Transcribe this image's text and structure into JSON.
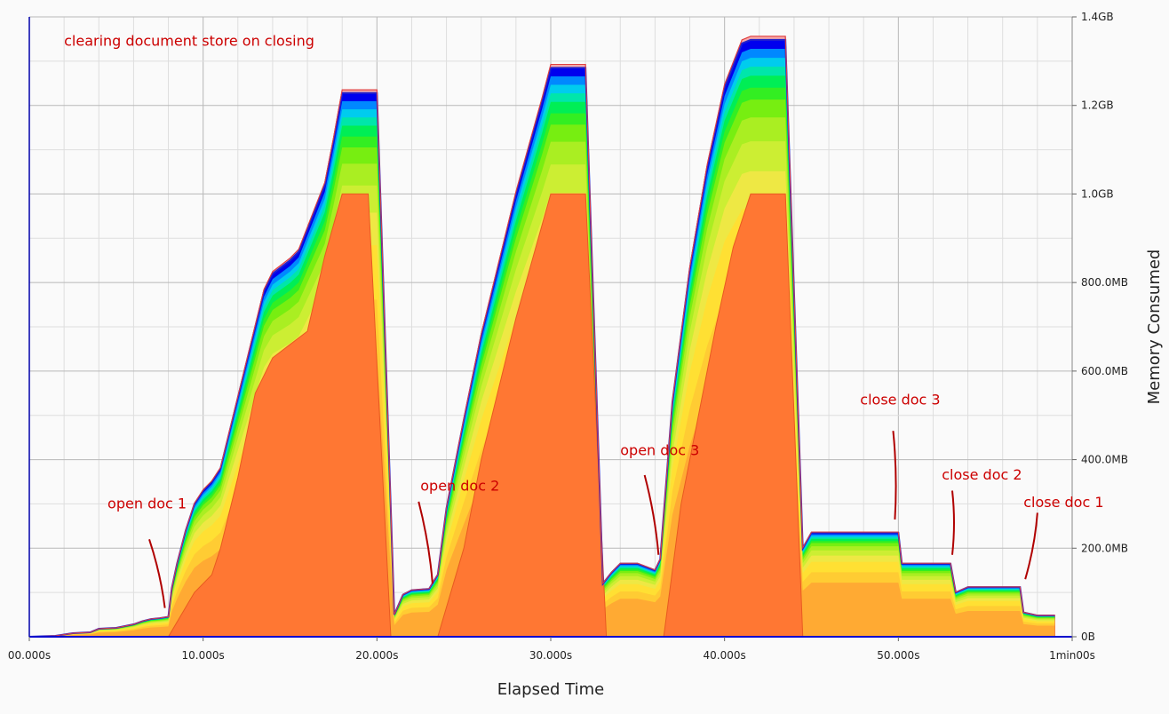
{
  "chart_data": {
    "type": "area",
    "title": "",
    "xlabel": "Elapsed Time",
    "ylabel": "Memory Consumed",
    "x_unit": "s",
    "y_unit": "MB",
    "xlim": [
      0,
      60
    ],
    "ylim": [
      0,
      1400
    ],
    "grid": true,
    "x_ticks": [
      {
        "value": 0,
        "label": "00.000s"
      },
      {
        "value": 10,
        "label": "10.000s"
      },
      {
        "value": 20,
        "label": "20.000s"
      },
      {
        "value": 30,
        "label": "30.000s"
      },
      {
        "value": 40,
        "label": "40.000s"
      },
      {
        "value": 50,
        "label": "50.000s"
      },
      {
        "value": 60,
        "label": "1min00s"
      }
    ],
    "y_ticks": [
      {
        "value": 0,
        "label": "0B"
      },
      {
        "value": 200,
        "label": "200.0MB"
      },
      {
        "value": 400,
        "label": "400.0MB"
      },
      {
        "value": 600,
        "label": "600.0MB"
      },
      {
        "value": 800,
        "label": "800.0MB"
      },
      {
        "value": 1000,
        "label": "1.0GB"
      },
      {
        "value": 1200,
        "label": "1.2GB"
      },
      {
        "value": 1400,
        "label": "1.4GB"
      }
    ],
    "series": [
      {
        "role": "total",
        "x": [
          0,
          1.5,
          2.5,
          3.5,
          4,
          5,
          6,
          6.5,
          7,
          7.5,
          8,
          8.2,
          8.5,
          9,
          9.5,
          10,
          10.5,
          11,
          12,
          13,
          13.5,
          14,
          15,
          15.5,
          16,
          17,
          17.5,
          18,
          19,
          20,
          21,
          21.5,
          22,
          23,
          23.5,
          24,
          25,
          26,
          27,
          28,
          29,
          29.5,
          30,
          31,
          32,
          33,
          33.5,
          34,
          35,
          36,
          36.3,
          37,
          38,
          39,
          40,
          41,
          41.5,
          42,
          43,
          43.5,
          44.5,
          45,
          46,
          50,
          50.2,
          53,
          53.3,
          54,
          55,
          56,
          57,
          57.2,
          58,
          59
        ],
        "y": [
          0,
          2,
          8,
          10,
          18,
          20,
          28,
          35,
          40,
          42,
          45,
          110,
          165,
          240,
          300,
          330,
          350,
          380,
          540,
          700,
          780,
          820,
          850,
          870,
          920,
          1020,
          1120,
          1228,
          1228,
          1228,
          50,
          95,
          105,
          108,
          140,
          290,
          490,
          680,
          840,
          1000,
          1140,
          1210,
          1285,
          1285,
          1285,
          120,
          145,
          165,
          165,
          150,
          175,
          530,
          830,
          1060,
          1240,
          1340,
          1348,
          1348,
          1348,
          1348,
          200,
          235,
          235,
          235,
          165,
          165,
          100,
          112,
          112,
          112,
          112,
          55,
          48,
          48
        ]
      }
    ],
    "bands": {
      "fractions": [
        1.0,
        0.985,
        0.97,
        0.955,
        0.94,
        0.92,
        0.9,
        0.87,
        0.83,
        0.78,
        0.72,
        0.62,
        0.52
      ],
      "colors": [
        "#0000ee",
        "#0088ff",
        "#00ccee",
        "#00e6aa",
        "#00ee55",
        "#33ee22",
        "#77ee11",
        "#aaee22",
        "#ccee33",
        "#eee844",
        "#ffe033",
        "#ffcc33",
        "#ffaa33"
      ],
      "base_color": "#ff7733",
      "outline_color": "#e04040",
      "peak_line_color": "#2222cc"
    },
    "heap_core": {
      "x": [
        8,
        9.5,
        10.5,
        11,
        12,
        13,
        14,
        15,
        16,
        17,
        18,
        19.5,
        20.8,
        23.5,
        25,
        26,
        27,
        28,
        29,
        30,
        31,
        32,
        33.2,
        36.5,
        37.5,
        38.5,
        39.5,
        40.5,
        41.5,
        42.5,
        43.5,
        44.5
      ],
      "y": [
        0,
        100,
        140,
        200,
        360,
        550,
        630,
        660,
        690,
        860,
        1000,
        1000,
        0,
        0,
        200,
        400,
        560,
        720,
        860,
        1000,
        1000,
        1000,
        0,
        0,
        300,
        500,
        700,
        880,
        1000,
        1000,
        1000,
        0
      ]
    },
    "annotations": [
      {
        "text": "clearing document store on closing",
        "x": 2,
        "y": 1335
      },
      {
        "text": "open doc 1",
        "x": 4.5,
        "y": 290,
        "arrow_to": [
          7.8,
          65
        ],
        "arrow_from": [
          6.9,
          220
        ]
      },
      {
        "text": "open doc 2",
        "x": 22.5,
        "y": 330,
        "arrow_to": [
          23.2,
          120
        ],
        "arrow_from": [
          22.4,
          305
        ]
      },
      {
        "text": "open doc 3",
        "x": 34,
        "y": 410,
        "arrow_to": [
          36.2,
          185
        ],
        "arrow_from": [
          35.4,
          365
        ]
      },
      {
        "text": "close doc 3",
        "x": 47.8,
        "y": 525,
        "arrow_to": [
          49.8,
          265
        ],
        "arrow_from": [
          49.7,
          465
        ]
      },
      {
        "text": "close doc 2",
        "x": 52.5,
        "y": 355,
        "arrow_to": [
          53.1,
          185
        ],
        "arrow_from": [
          53.1,
          330
        ]
      },
      {
        "text": "close doc 1",
        "x": 57.2,
        "y": 293,
        "arrow_to": [
          57.3,
          130
        ],
        "arrow_from": [
          58.0,
          280
        ]
      }
    ]
  }
}
